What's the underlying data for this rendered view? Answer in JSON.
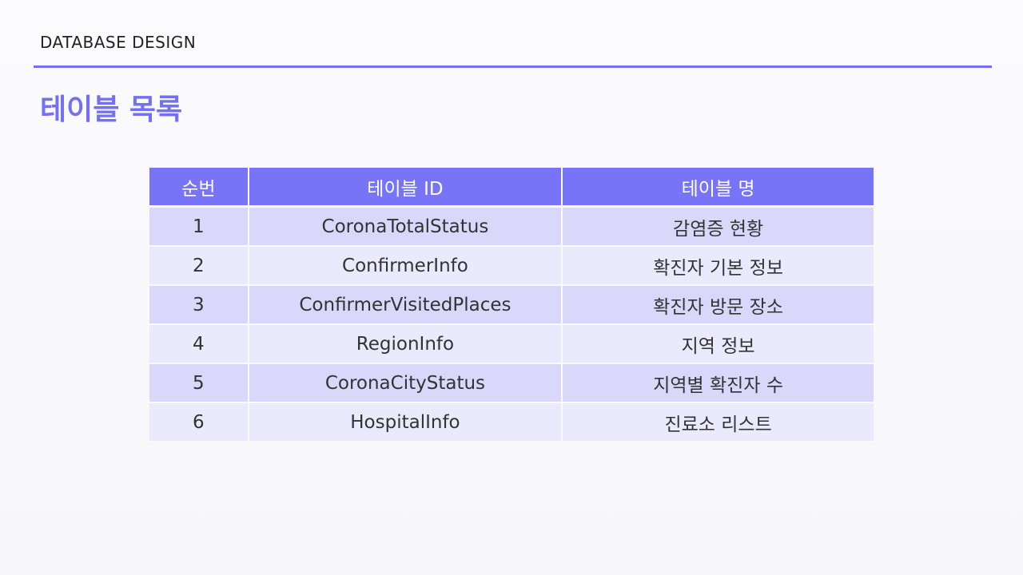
{
  "header": {
    "section_label": "DATABASE DESIGN",
    "title": "테이블 목록"
  },
  "table": {
    "columns": [
      "순번",
      "테이블 ID",
      "테이블 명"
    ],
    "rows": [
      {
        "no": "1",
        "id": "CoronaTotalStatus",
        "name": "감염증 현황"
      },
      {
        "no": "2",
        "id": "ConfirmerInfo",
        "name": "확진자 기본 정보"
      },
      {
        "no": "3",
        "id": "ConfirmerVisitedPlaces",
        "name": "확진자 방문 장소"
      },
      {
        "no": "4",
        "id": "RegionInfo",
        "name": "지역 정보"
      },
      {
        "no": "5",
        "id": "CoronaCityStatus",
        "name": "지역별 확진자 수"
      },
      {
        "no": "6",
        "id": "HospitalInfo",
        "name": "진료소 리스트"
      }
    ]
  },
  "colors": {
    "accent": "#7470f5",
    "header_bg": "#7774f7",
    "row_odd": "#d9d8fb",
    "row_even": "#ebeafd"
  }
}
